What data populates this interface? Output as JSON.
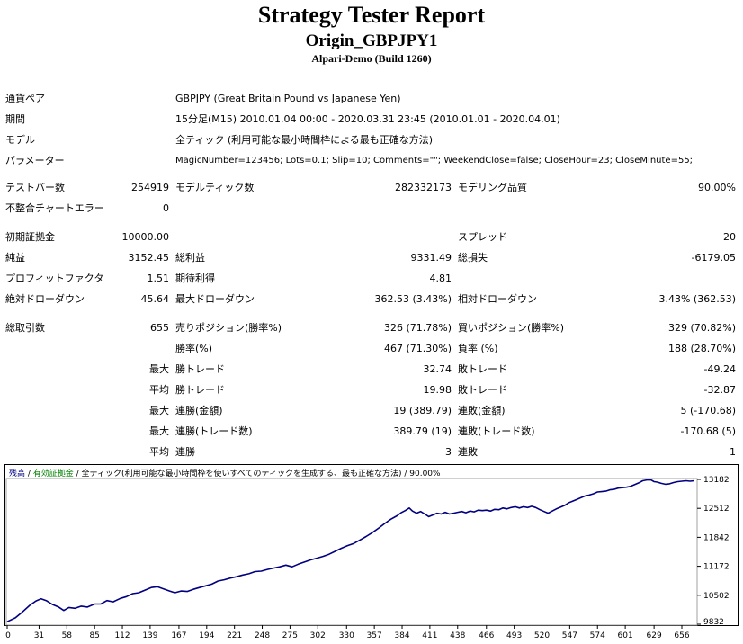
{
  "header": {
    "title": "Strategy Tester Report",
    "expert": "Origin_GBPJPY1",
    "server": "Alpari-Demo (Build 1260)"
  },
  "info": {
    "symbol_label": "通貨ペア",
    "symbol_value": "GBPJPY (Great Britain Pound vs Japanese Yen)",
    "period_label": "期間",
    "period_value": "15分足(M15) 2010.01.04 00:00 - 2020.03.31 23:45 (2010.01.01 - 2020.04.01)",
    "model_label": "モデル",
    "model_value": "全ティック (利用可能な最小時間枠による最も正確な方法)",
    "params_label": "パラメーター",
    "params_value": "MagicNumber=123456; Lots=0.1; Slip=10; Comments=\"\"; WeekendClose=false; CloseHour=23; CloseMinute=55;"
  },
  "stats": {
    "bars_label": "テストバー数",
    "bars_value": "254919",
    "ticks_label": "モデルティック数",
    "ticks_value": "282332173",
    "quality_label": "モデリング品質",
    "quality_value": "90.00%",
    "errors_label": "不整合チャートエラー",
    "errors_value": "0",
    "deposit_label": "初期証拠金",
    "deposit_value": "10000.00",
    "spread_label": "スプレッド",
    "spread_value": "20",
    "net_label": "純益",
    "net_value": "3152.45",
    "gross_profit_label": "総利益",
    "gross_profit_value": "9331.49",
    "gross_loss_label": "総損失",
    "gross_loss_value": "-6179.05",
    "pf_label": "プロフィットファクタ",
    "pf_value": "1.51",
    "expected_label": "期待利得",
    "expected_value": "4.81",
    "abs_dd_label": "絶対ドローダウン",
    "abs_dd_value": "45.64",
    "max_dd_label": "最大ドローダウン",
    "max_dd_value": "362.53 (3.43%)",
    "rel_dd_label": "相対ドローダウン",
    "rel_dd_value": "3.43% (362.53)",
    "total_trades_label": "総取引数",
    "total_trades_value": "655",
    "short_label": "売りポジション(勝率%)",
    "short_value": "326 (71.78%)",
    "long_label": "買いポジション(勝率%)",
    "long_value": "329 (70.82%)",
    "win_rate_label": "勝率(%)",
    "win_rate_value": "467 (71.30%)",
    "loss_rate_label": "負率 (%)",
    "loss_rate_value": "188 (28.70%)",
    "max_label": "最大",
    "avg_label": "平均",
    "largest_profit_label": "勝トレード",
    "largest_profit_value": "32.74",
    "largest_loss_label": "敗トレード",
    "largest_loss_value": "-49.24",
    "avg_profit_label": "勝トレード",
    "avg_profit_value": "19.98",
    "avg_loss_label": "敗トレード",
    "avg_loss_value": "-32.87",
    "max_cons_wins_label": "連勝(金額)",
    "max_cons_wins_value": "19 (389.79)",
    "max_cons_losses_label": "連敗(金額)",
    "max_cons_losses_value": "5 (-170.68)",
    "max_cons_profit_label": "連勝(トレード数)",
    "max_cons_profit_value": "389.79 (19)",
    "max_cons_loss_label": "連敗(トレード数)",
    "max_cons_loss_value": "-170.68 (5)",
    "avg_cons_wins_label": "連勝",
    "avg_cons_wins_value": "3",
    "avg_cons_losses_label": "連敗",
    "avg_cons_losses_value": "1"
  },
  "chart_data": {
    "type": "line",
    "legend_balance": "残高",
    "legend_sep1": " / ",
    "legend_equity": "有効証拠金",
    "legend_rest": " / 全ティック(利用可能な最小時間枠を使いすべてのティックを生成する、最も正確な方法) / 90.00%",
    "line_color": "#000080",
    "x_ticks": [
      "0",
      "31",
      "58",
      "85",
      "112",
      "139",
      "167",
      "194",
      "221",
      "248",
      "275",
      "302",
      "330",
      "357",
      "384",
      "411",
      "438",
      "466",
      "493",
      "520",
      "547",
      "574",
      "601",
      "629",
      "656"
    ],
    "y_ticks": [
      "13182",
      "12512",
      "11842",
      "11172",
      "10502",
      "9832"
    ],
    "ylim": [
      9832,
      13182
    ],
    "xlim": [
      0,
      670
    ],
    "series": [
      {
        "values": [
          [
            0,
            9890
          ],
          [
            8,
            9980
          ],
          [
            15,
            10120
          ],
          [
            22,
            10270
          ],
          [
            28,
            10370
          ],
          [
            33,
            10420
          ],
          [
            38,
            10380
          ],
          [
            44,
            10290
          ],
          [
            50,
            10230
          ],
          [
            55,
            10150
          ],
          [
            60,
            10220
          ],
          [
            66,
            10200
          ],
          [
            72,
            10250
          ],
          [
            78,
            10230
          ],
          [
            85,
            10300
          ],
          [
            91,
            10300
          ],
          [
            97,
            10380
          ],
          [
            103,
            10350
          ],
          [
            110,
            10430
          ],
          [
            116,
            10470
          ],
          [
            122,
            10540
          ],
          [
            128,
            10560
          ],
          [
            134,
            10620
          ],
          [
            140,
            10680
          ],
          [
            146,
            10700
          ],
          [
            152,
            10650
          ],
          [
            158,
            10600
          ],
          [
            163,
            10560
          ],
          [
            169,
            10600
          ],
          [
            175,
            10590
          ],
          [
            181,
            10640
          ],
          [
            187,
            10680
          ],
          [
            193,
            10720
          ],
          [
            199,
            10760
          ],
          [
            205,
            10830
          ],
          [
            211,
            10860
          ],
          [
            217,
            10900
          ],
          [
            223,
            10930
          ],
          [
            229,
            10970
          ],
          [
            235,
            11000
          ],
          [
            241,
            11050
          ],
          [
            247,
            11060
          ],
          [
            253,
            11100
          ],
          [
            259,
            11130
          ],
          [
            265,
            11160
          ],
          [
            271,
            11200
          ],
          [
            277,
            11160
          ],
          [
            283,
            11220
          ],
          [
            289,
            11270
          ],
          [
            295,
            11320
          ],
          [
            301,
            11360
          ],
          [
            307,
            11400
          ],
          [
            313,
            11450
          ],
          [
            319,
            11520
          ],
          [
            325,
            11590
          ],
          [
            331,
            11650
          ],
          [
            337,
            11700
          ],
          [
            343,
            11780
          ],
          [
            349,
            11860
          ],
          [
            355,
            11950
          ],
          [
            361,
            12050
          ],
          [
            367,
            12160
          ],
          [
            373,
            12260
          ],
          [
            379,
            12340
          ],
          [
            383,
            12410
          ],
          [
            387,
            12460
          ],
          [
            391,
            12520
          ],
          [
            394,
            12450
          ],
          [
            398,
            12400
          ],
          [
            402,
            12440
          ],
          [
            406,
            12380
          ],
          [
            410,
            12320
          ],
          [
            414,
            12360
          ],
          [
            418,
            12400
          ],
          [
            422,
            12380
          ],
          [
            426,
            12420
          ],
          [
            430,
            12380
          ],
          [
            434,
            12400
          ],
          [
            438,
            12420
          ],
          [
            442,
            12440
          ],
          [
            446,
            12410
          ],
          [
            450,
            12450
          ],
          [
            454,
            12430
          ],
          [
            458,
            12470
          ],
          [
            462,
            12460
          ],
          [
            466,
            12470
          ],
          [
            470,
            12450
          ],
          [
            474,
            12490
          ],
          [
            478,
            12480
          ],
          [
            482,
            12520
          ],
          [
            486,
            12500
          ],
          [
            490,
            12530
          ],
          [
            494,
            12550
          ],
          [
            498,
            12520
          ],
          [
            502,
            12550
          ],
          [
            506,
            12530
          ],
          [
            510,
            12560
          ],
          [
            514,
            12530
          ],
          [
            518,
            12480
          ],
          [
            522,
            12440
          ],
          [
            526,
            12400
          ],
          [
            530,
            12450
          ],
          [
            534,
            12500
          ],
          [
            538,
            12540
          ],
          [
            542,
            12580
          ],
          [
            546,
            12640
          ],
          [
            550,
            12680
          ],
          [
            554,
            12720
          ],
          [
            558,
            12760
          ],
          [
            562,
            12800
          ],
          [
            566,
            12820
          ],
          [
            570,
            12850
          ],
          [
            574,
            12890
          ],
          [
            578,
            12900
          ],
          [
            582,
            12910
          ],
          [
            586,
            12940
          ],
          [
            590,
            12950
          ],
          [
            594,
            12980
          ],
          [
            598,
            12990
          ],
          [
            602,
            13000
          ],
          [
            606,
            13020
          ],
          [
            610,
            13060
          ],
          [
            614,
            13100
          ],
          [
            618,
            13150
          ],
          [
            622,
            13170
          ],
          [
            626,
            13170
          ],
          [
            629,
            13130
          ],
          [
            632,
            13120
          ],
          [
            636,
            13090
          ],
          [
            640,
            13070
          ],
          [
            644,
            13080
          ],
          [
            648,
            13110
          ],
          [
            652,
            13130
          ],
          [
            656,
            13140
          ],
          [
            660,
            13150
          ],
          [
            664,
            13140
          ],
          [
            668,
            13150
          ]
        ]
      }
    ]
  }
}
